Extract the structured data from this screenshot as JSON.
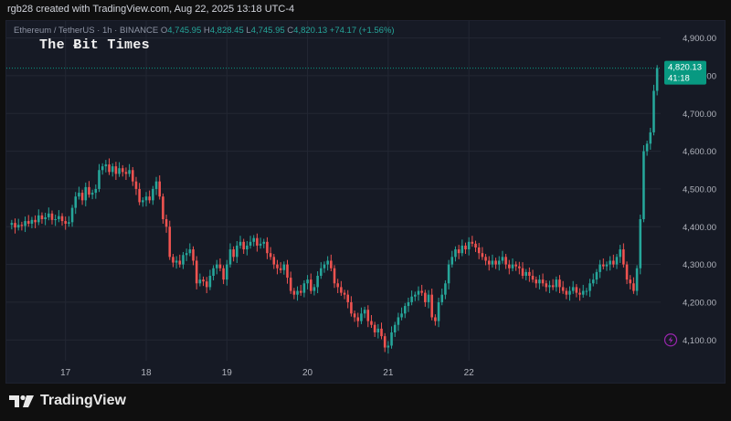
{
  "header": {
    "caption": "rgb28 created with TradingView.com, Aug 22, 2025 13:18 UTC-4"
  },
  "symbol_info": {
    "title": "Ethereum / TetherUS · 1h · BINANCE",
    "open_label": "O",
    "open": "4,745.95",
    "high_label": "H",
    "high": "4,828.45",
    "low_label": "L",
    "low": "4,745.95",
    "close_label": "C",
    "close": "4,820.13",
    "change": "+74.17 (+1.56%)"
  },
  "watermark": "The Ƀit Times",
  "price_badge": {
    "price": "4,820.13",
    "countdown": "41:18",
    "color": "#089981"
  },
  "footer": {
    "brand": "TradingView",
    "logo_icon": "tradingview-logo-icon"
  },
  "colors": {
    "up": "#26a69a",
    "down": "#ef5350",
    "background": "#161a25",
    "grid": "#232733",
    "text": "#b2b5be",
    "lightning": "#9c27b0"
  },
  "chart_data": {
    "type": "candlestick",
    "title": "Ethereum / TetherUS · 1h · BINANCE",
    "interval": "1h",
    "x_tick_labels": [
      "17",
      "18",
      "19",
      "20",
      "21",
      "22"
    ],
    "y_tick_labels": [
      "4,900.00",
      "4,800.00",
      "4,700.00",
      "4,600.00",
      "4,500.00",
      "4,400.00",
      "4,300.00",
      "4,200.00",
      "4,100.00"
    ],
    "y_ticks": [
      4900,
      4800,
      4700,
      4600,
      4500,
      4400,
      4300,
      4200,
      4100
    ],
    "ylim": [
      4045,
      4945
    ],
    "grid": true,
    "last_price": 4820.13,
    "closes": [
      4410,
      4398,
      4405,
      4402,
      4415,
      4408,
      4418,
      4412,
      4430,
      4420,
      4425,
      4435,
      4418,
      4420,
      4428,
      4415,
      4408,
      4412,
      4450,
      4480,
      4490,
      4470,
      4505,
      4485,
      4490,
      4500,
      4550,
      4560,
      4565,
      4545,
      4560,
      4540,
      4555,
      4545,
      4540,
      4550,
      4520,
      4500,
      4465,
      4470,
      4480,
      4470,
      4500,
      4520,
      4480,
      4420,
      4400,
      4320,
      4305,
      4310,
      4300,
      4325,
      4330,
      4340,
      4310,
      4250,
      4260,
      4255,
      4240,
      4270,
      4290,
      4300,
      4290,
      4260,
      4300,
      4340,
      4320,
      4350,
      4360,
      4340,
      4350,
      4360,
      4370,
      4350,
      4355,
      4360,
      4330,
      4320,
      4300,
      4290,
      4285,
      4300,
      4265,
      4230,
      4220,
      4230,
      4225,
      4250,
      4260,
      4230,
      4240,
      4270,
      4290,
      4300,
      4310,
      4290,
      4250,
      4240,
      4225,
      4220,
      4200,
      4170,
      4160,
      4150,
      4170,
      4180,
      4150,
      4140,
      4120,
      4130,
      4110,
      4080,
      4085,
      4120,
      4140,
      4160,
      4170,
      4190,
      4200,
      4215,
      4220,
      4230,
      4225,
      4200,
      4220,
      4160,
      4150,
      4200,
      4220,
      4250,
      4300,
      4320,
      4340,
      4330,
      4350,
      4340,
      4360,
      4355,
      4345,
      4330,
      4320,
      4310,
      4300,
      4310,
      4300,
      4310,
      4320,
      4300,
      4290,
      4300,
      4295,
      4290,
      4270,
      4280,
      4270,
      4260,
      4250,
      4260,
      4250,
      4240,
      4245,
      4240,
      4260,
      4240,
      4230,
      4220,
      4230,
      4240,
      4225,
      4220,
      4230,
      4230,
      4250,
      4260,
      4280,
      4300,
      4295,
      4300,
      4310,
      4300,
      4320,
      4340,
      4300,
      4260,
      4250,
      4230,
      4290,
      4420,
      4600,
      4620,
      4650,
      4760,
      4820.13
    ]
  }
}
